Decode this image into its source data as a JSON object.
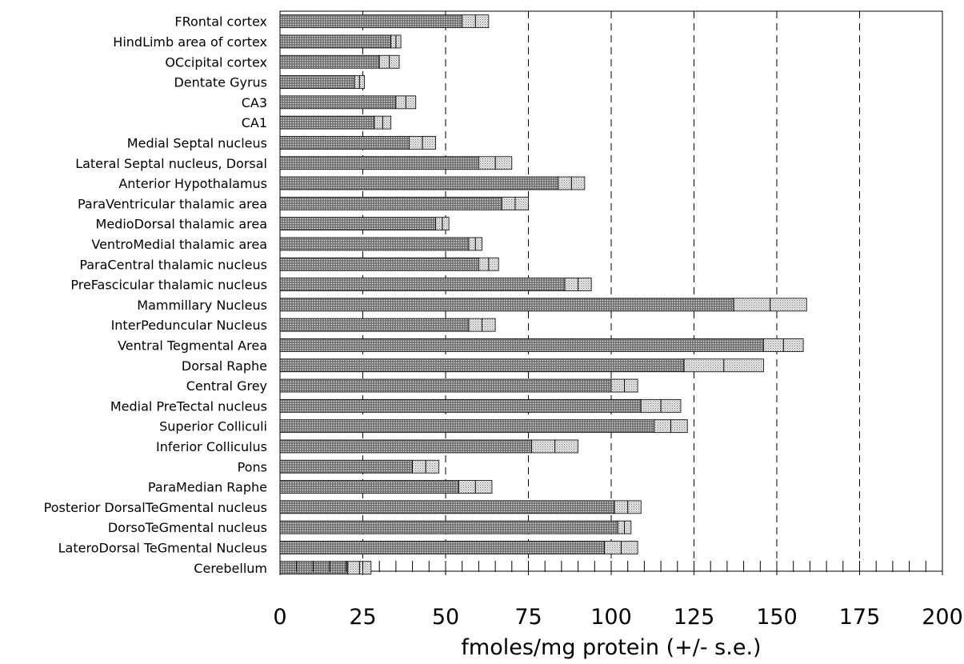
{
  "chart_data": {
    "type": "bar",
    "orientation": "horizontal",
    "xlabel": "fmoles/mg protein (+/- s.e.)",
    "xlim": [
      0,
      200
    ],
    "xticks": [
      0,
      25,
      50,
      75,
      100,
      125,
      150,
      175,
      200
    ],
    "grid": "vertical dashed lines every 25 units",
    "error_style": "lighter stippled extension showing mean - s.e. to mean + s.e.",
    "categories": [
      "FRontal cortex",
      "HindLimb area of cortex",
      "OCcipital cortex",
      "Dentate Gyrus",
      "CA3",
      "CA1",
      "Medial Septal nucleus",
      "Lateral Septal nucleus, Dorsal",
      "Anterior Hypothalamus",
      "ParaVentricular thalamic area",
      "MedioDorsal thalamic area",
      "VentroMedial thalamic area",
      "ParaCentral thalamic nucleus",
      "PreFascicular thalamic nucleus",
      "Mammillary Nucleus",
      "InterPeduncular Nucleus",
      "Ventral Tegmental Area",
      "Dorsal Raphe",
      "Central Grey",
      "Medial PreTectal nucleus",
      "Superior Colliculi",
      "Inferior Colliculus",
      "Pons",
      "ParaMedian Raphe",
      "Posterior DorsalTeGmental nucleus",
      "DorsoTeGmental nucleus",
      "LateroDorsal TeGmental Nucleus",
      "Cerebellum"
    ],
    "values": [
      59,
      35,
      33,
      24,
      38,
      31,
      43,
      65,
      88,
      71,
      49,
      59,
      63,
      90,
      148,
      61,
      152,
      134,
      104,
      115,
      118,
      83,
      44,
      59,
      105,
      104,
      103,
      24
    ],
    "errors": [
      4,
      1.5,
      3,
      1.5,
      3,
      2.5,
      4,
      5,
      4,
      4,
      2,
      2,
      3,
      4,
      11,
      4,
      6,
      12,
      4,
      6,
      5,
      7,
      4,
      5,
      4,
      2,
      5,
      3.5
    ]
  }
}
